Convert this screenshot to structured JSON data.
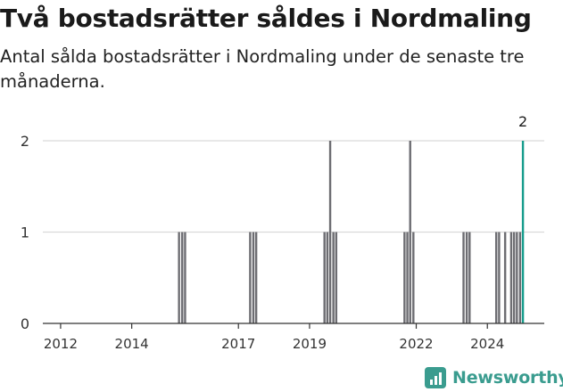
{
  "header": {
    "title": "Två bostadsrätter såldes i Nordmaling",
    "subtitle": "Antal sålda bostadsrätter i Nordmaling under de senaste tre månaderna."
  },
  "brand": {
    "name": "Newsworthy",
    "icon": "bar-chart-logo-icon"
  },
  "colors": {
    "bar": "#6d6d72",
    "highlight": "#169c8c",
    "grid": "#d9d9d9",
    "brand": "#3a9c8f"
  },
  "chart_data": {
    "type": "bar",
    "title": "Två bostadsrätter såldes i Nordmaling",
    "subtitle": "Antal sålda bostadsrätter i Nordmaling under de senaste tre månaderna.",
    "xlabel": "",
    "ylabel": "",
    "xlim": [
      2011.5,
      2025.6
    ],
    "ylim": [
      0,
      2
    ],
    "yticks": [
      "0",
      "1",
      "2"
    ],
    "xticks": [
      "2012",
      "2014",
      "2017",
      "2019",
      "2022",
      "2024"
    ],
    "grid": true,
    "x": [
      2015.33,
      2015.42,
      2015.5,
      2017.33,
      2017.42,
      2017.5,
      2019.42,
      2019.5,
      2019.58,
      2019.67,
      2019.75,
      2021.67,
      2021.75,
      2021.83,
      2021.92,
      2023.33,
      2023.42,
      2023.5,
      2024.25,
      2024.33,
      2024.5,
      2024.67,
      2024.75,
      2024.83,
      2024.92,
      2025.0
    ],
    "values": [
      1,
      1,
      1,
      1,
      1,
      1,
      1,
      1,
      2,
      1,
      1,
      1,
      1,
      2,
      1,
      1,
      1,
      1,
      1,
      1,
      1,
      1,
      1,
      1,
      1,
      2
    ],
    "highlight_index": 25,
    "highlight_label": "2"
  }
}
